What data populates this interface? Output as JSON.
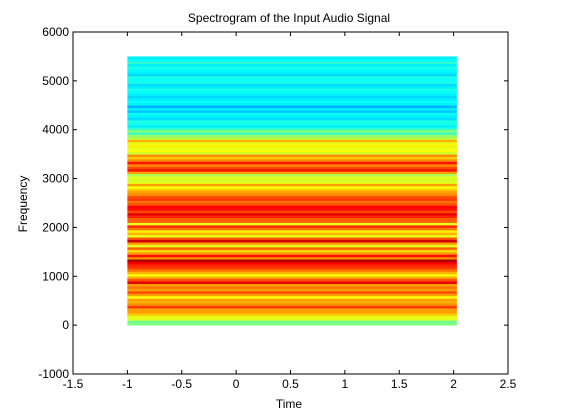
{
  "chart_data": {
    "type": "heatmap",
    "title": "Spectrogram of the Input Audio Signal",
    "xlabel": "Time",
    "ylabel": "Frequency",
    "xlim": [
      -1.5,
      2.5
    ],
    "ylim": [
      -1000,
      6000
    ],
    "xticks": [
      -1.5,
      -1,
      -0.5,
      0,
      0.5,
      1,
      1.5,
      2,
      2.5
    ],
    "yticks": [
      -1000,
      0,
      1000,
      2000,
      3000,
      4000,
      5000,
      6000
    ],
    "xtick_labels": [
      "-1.5",
      "-1",
      "-0.5",
      "0",
      "0.5",
      "1",
      "1.5",
      "2",
      "2.5"
    ],
    "ytick_labels": [
      "-1000",
      "0",
      "1000",
      "2000",
      "3000",
      "4000",
      "5000",
      "6000"
    ],
    "grid": false,
    "colormap": "jet",
    "image_x_range": [
      -1.0,
      2.03
    ],
    "image_y_range": [
      0,
      5500
    ],
    "intensity": [
      0.5,
      0.48,
      0.6,
      0.6,
      0.68,
      0.72,
      0.72,
      0.82,
      0.74,
      0.7,
      0.72,
      0.62,
      0.72,
      0.8,
      0.72,
      0.76,
      0.72,
      0.9,
      0.8,
      0.72,
      0.62,
      0.7,
      0.76,
      0.82,
      0.84,
      0.88,
      0.96,
      0.74,
      0.86,
      0.72,
      0.66,
      0.78,
      0.6,
      0.72,
      0.92,
      0.8,
      0.6,
      0.7,
      0.64,
      0.76,
      0.84,
      0.6,
      0.78,
      0.78,
      0.84,
      0.9,
      0.8,
      0.86,
      0.88,
      0.8,
      0.76,
      0.82,
      0.8,
      0.74,
      0.72,
      0.68,
      0.62,
      0.72,
      0.6,
      0.58,
      0.6,
      0.54,
      0.72,
      0.86,
      0.8,
      0.74,
      0.86,
      0.74,
      0.68,
      0.74,
      0.58,
      0.62,
      0.6,
      0.64,
      0.6,
      0.7,
      0.56,
      0.52,
      0.44,
      0.5,
      0.42,
      0.36,
      0.4,
      0.4,
      0.34,
      0.36,
      0.38,
      0.32,
      0.36,
      0.3,
      0.36,
      0.38,
      0.36,
      0.34,
      0.36,
      0.38,
      0.4,
      0.36,
      0.34,
      0.4,
      0.38,
      0.4,
      0.34,
      0.36,
      0.38,
      0.4,
      0.36,
      0.42,
      0.38,
      0.36
    ],
    "colors": {
      "background": "#ffffff",
      "axes": "#000000"
    }
  }
}
